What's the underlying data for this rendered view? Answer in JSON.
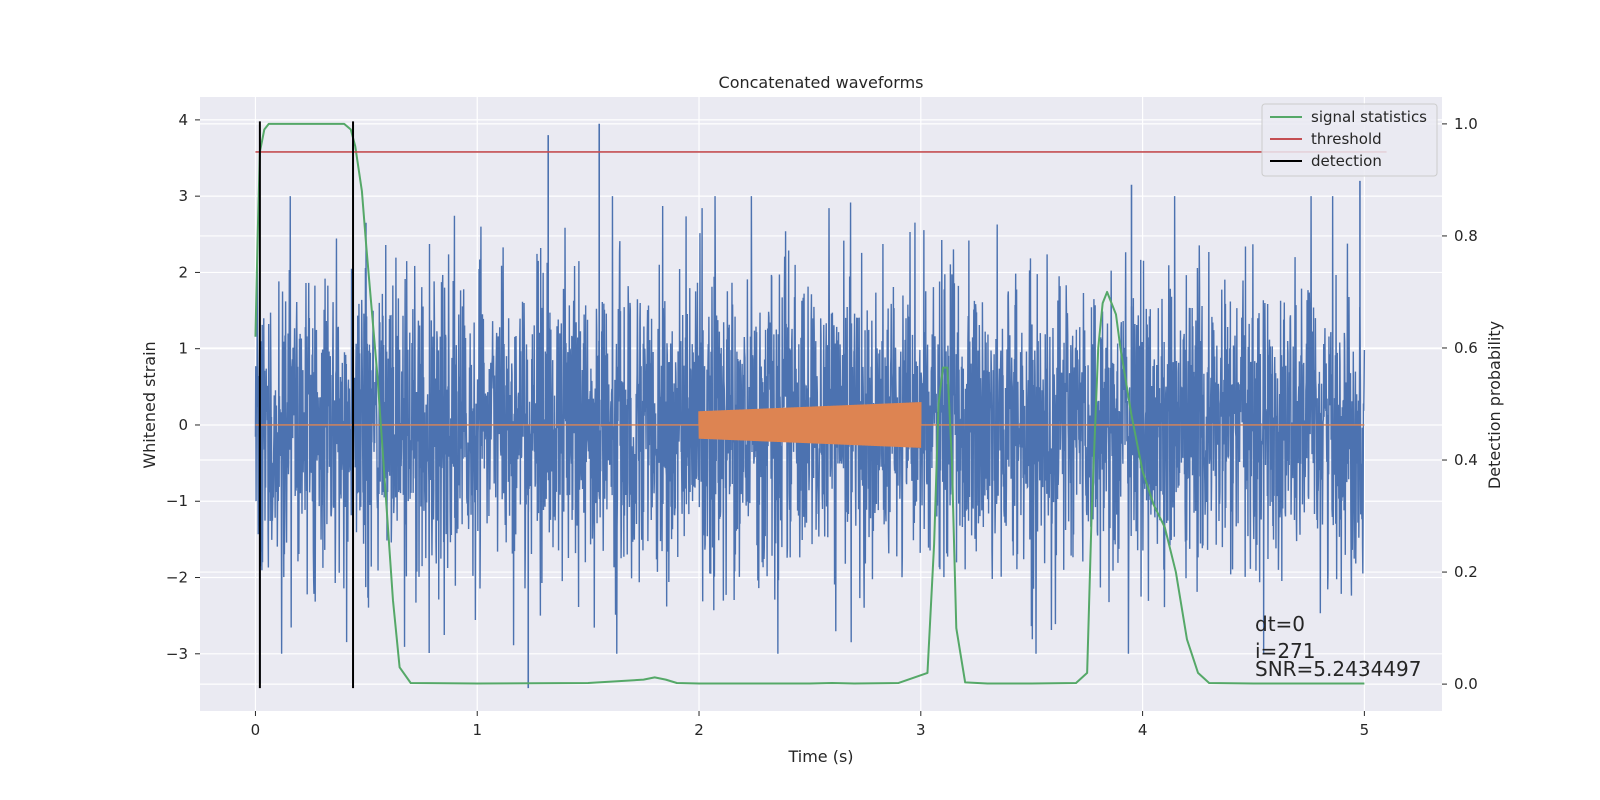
{
  "chart_data": {
    "type": "line",
    "title": "Concatenated waveforms",
    "xlabel": "Time (s)",
    "ylabel": "Whitened strain",
    "y2label": "Detection probability",
    "xlim": [
      -0.25,
      5.35
    ],
    "ylim": [
      -3.75,
      4.3
    ],
    "y2lim": [
      -0.048,
      1.048
    ],
    "xticks": [
      0,
      1,
      2,
      3,
      4,
      5
    ],
    "yticks": [
      -3,
      -2,
      -1,
      0,
      1,
      2,
      3,
      4
    ],
    "yticklabels": [
      "−3",
      "−2",
      "−1",
      "0",
      "1",
      "2",
      "3",
      "4"
    ],
    "y2ticks": [
      0.0,
      0.2,
      0.4,
      0.6,
      0.8,
      1.0
    ],
    "y2ticklabels": [
      "0.0",
      "0.2",
      "0.4",
      "0.6",
      "0.8",
      "1.0"
    ],
    "grid": true,
    "legend_position": "top-right",
    "colors": {
      "noise": "#4c72b0",
      "injection": "#dd8452",
      "signal_statistics": "#55a868",
      "threshold": "#c44e52",
      "detection": "#000000",
      "plot_bg": "#eaeaf2",
      "grid": "#ffffff"
    },
    "series": [
      {
        "name": "",
        "axis": "left",
        "kind": "noise",
        "x_range": [
          0,
          5
        ],
        "std": 0.95,
        "notable_peaks": [
          {
            "x": 1.32,
            "y": 3.8
          },
          {
            "x": 1.55,
            "y": 3.95
          },
          {
            "x": 3.95,
            "y": 3.15
          },
          {
            "x": 4.98,
            "y": 3.2
          },
          {
            "x": 1.23,
            "y": -3.45
          },
          {
            "x": 0.02,
            "y": -3.4
          }
        ]
      },
      {
        "name": "",
        "axis": "left",
        "kind": "injection",
        "x_range": [
          0,
          5
        ],
        "chirp": {
          "start": 2.0,
          "end": 3.0,
          "amp_start": 0.18,
          "amp_end": 0.3
        }
      },
      {
        "name": "signal statistics",
        "axis": "right",
        "x": [
          0,
          0.01,
          0.02,
          0.04,
          0.06,
          0.1,
          0.2,
          0.3,
          0.4,
          0.43,
          0.45,
          0.48,
          0.5,
          0.55,
          0.58,
          0.62,
          0.65,
          0.7,
          1.0,
          1.5,
          1.75,
          1.8,
          1.85,
          1.9,
          2.0,
          2.5,
          2.6,
          2.7,
          2.9,
          3.03,
          3.06,
          3.08,
          3.1,
          3.12,
          3.14,
          3.16,
          3.2,
          3.3,
          3.5,
          3.7,
          3.75,
          3.77,
          3.8,
          3.82,
          3.84,
          3.88,
          3.9,
          3.95,
          4.0,
          4.05,
          4.1,
          4.15,
          4.2,
          4.25,
          4.3,
          4.5,
          5.0
        ],
        "values": [
          0.62,
          0.8,
          0.95,
          0.99,
          1.0,
          1.0,
          1.0,
          1.0,
          1.0,
          0.99,
          0.96,
          0.88,
          0.78,
          0.55,
          0.38,
          0.15,
          0.03,
          0.002,
          0.001,
          0.002,
          0.008,
          0.012,
          0.008,
          0.002,
          0.001,
          0.001,
          0.002,
          0.001,
          0.002,
          0.02,
          0.25,
          0.5,
          0.565,
          0.565,
          0.4,
          0.1,
          0.003,
          0.001,
          0.001,
          0.002,
          0.02,
          0.3,
          0.6,
          0.68,
          0.7,
          0.66,
          0.6,
          0.48,
          0.38,
          0.32,
          0.28,
          0.2,
          0.08,
          0.02,
          0.002,
          0.001,
          0.001
        ]
      },
      {
        "name": "threshold",
        "axis": "right",
        "x": [
          0,
          5.1
        ],
        "values": [
          0.95,
          0.95
        ]
      },
      {
        "name": "detection",
        "axis": "left",
        "kind": "vlines",
        "x": [
          0.02,
          0.44
        ],
        "ymin": -3.45,
        "ymax": 3.98
      }
    ],
    "annotations": [
      "dt=0",
      "i=271",
      "SNR=5.2434497"
    ]
  }
}
